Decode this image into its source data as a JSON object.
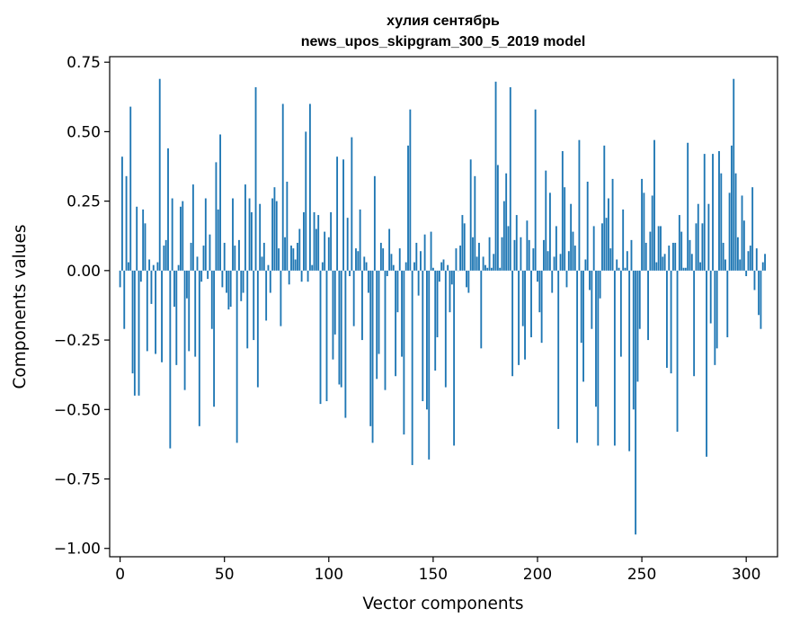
{
  "chart_data": {
    "type": "bar",
    "title": "хулия сентябрь",
    "subtitle": "news_upos_skipgram_300_5_2019 model",
    "xlabel": "Vector components",
    "ylabel": "Components values",
    "xlim": [
      -5,
      315
    ],
    "ylim": [
      -1.03,
      0.77
    ],
    "xticks": [
      0,
      50,
      100,
      150,
      200,
      250,
      300
    ],
    "xtick_labels": [
      "0",
      "50",
      "100",
      "150",
      "200",
      "250",
      "300"
    ],
    "yticks": [
      0.75,
      0.5,
      0.25,
      0.0,
      -0.25,
      -0.5,
      -0.75,
      -1.0
    ],
    "ytick_labels": [
      "0.75",
      "0.50",
      "0.25",
      "0.00",
      "−0.25",
      "−0.50",
      "−0.75",
      "−1.00"
    ],
    "grid": false,
    "color": "#1f77b4",
    "values": [
      -0.06,
      0.41,
      -0.21,
      0.34,
      0.03,
      0.59,
      -0.37,
      -0.45,
      0.23,
      -0.45,
      -0.04,
      0.22,
      0.17,
      -0.29,
      0.04,
      -0.12,
      0.02,
      -0.3,
      0.03,
      0.69,
      -0.33,
      0.09,
      0.11,
      0.44,
      -0.64,
      0.26,
      -0.13,
      -0.34,
      0.02,
      0.23,
      0.25,
      -0.43,
      -0.1,
      -0.29,
      0.1,
      0.31,
      -0.31,
      0.05,
      -0.56,
      -0.04,
      0.09,
      0.26,
      -0.03,
      0.13,
      -0.21,
      -0.49,
      0.39,
      0.22,
      0.49,
      -0.06,
      0.1,
      -0.08,
      -0.14,
      -0.13,
      0.26,
      0.09,
      -0.62,
      0.11,
      -0.11,
      -0.08,
      0.31,
      -0.28,
      0.26,
      0.21,
      -0.25,
      0.66,
      -0.42,
      0.24,
      0.05,
      0.1,
      -0.18,
      0.02,
      -0.08,
      0.26,
      0.3,
      0.25,
      0.08,
      -0.2,
      0.6,
      0.12,
      0.32,
      -0.05,
      0.09,
      0.08,
      0.04,
      0.1,
      0.15,
      -0.04,
      0.21,
      0.5,
      -0.04,
      0.6,
      0.02,
      0.21,
      0.15,
      0.2,
      -0.48,
      0.03,
      0.14,
      -0.47,
      0.12,
      0.21,
      -0.32,
      -0.23,
      0.41,
      -0.41,
      -0.42,
      0.4,
      -0.53,
      0.19,
      -0.02,
      0.48,
      -0.2,
      0.08,
      0.07,
      0.22,
      -0.25,
      0.05,
      0.03,
      -0.08,
      -0.56,
      -0.62,
      0.34,
      -0.39,
      -0.3,
      0.1,
      0.08,
      -0.43,
      -0.02,
      0.15,
      0.06,
      0.02,
      -0.38,
      -0.15,
      0.08,
      -0.31,
      -0.59,
      0.03,
      0.45,
      0.58,
      -0.7,
      0.03,
      0.1,
      -0.09,
      0.07,
      -0.47,
      0.13,
      -0.5,
      -0.68,
      0.14,
      0.01,
      -0.36,
      -0.24,
      -0.04,
      0.03,
      0.04,
      -0.42,
      0.02,
      -0.15,
      -0.05,
      -0.63,
      0.08,
      0.0,
      0.09,
      0.2,
      0.17,
      -0.06,
      -0.08,
      0.4,
      0.12,
      0.34,
      0.05,
      0.1,
      -0.28,
      0.05,
      0.02,
      0.01,
      0.12,
      0.01,
      0.06,
      0.68,
      0.38,
      0.01,
      0.12,
      0.25,
      0.35,
      0.16,
      0.66,
      -0.38,
      0.11,
      0.2,
      -0.34,
      0.12,
      -0.2,
      -0.32,
      0.18,
      0.11,
      -0.24,
      0.08,
      0.58,
      -0.04,
      -0.15,
      -0.26,
      0.11,
      0.36,
      0.07,
      0.28,
      -0.08,
      0.05,
      0.16,
      -0.57,
      0.06,
      0.43,
      0.3,
      -0.06,
      0.07,
      0.24,
      0.14,
      0.09,
      -0.62,
      0.47,
      -0.26,
      -0.4,
      0.04,
      0.32,
      -0.07,
      -0.21,
      0.16,
      -0.49,
      -0.63,
      -0.1,
      0.17,
      0.45,
      0.19,
      0.26,
      0.08,
      0.33,
      -0.63,
      0.04,
      0.01,
      -0.31,
      0.22,
      0.01,
      0.07,
      -0.65,
      0.11,
      -0.5,
      -0.95,
      -0.4,
      -0.21,
      0.33,
      0.28,
      0.1,
      -0.25,
      0.14,
      0.27,
      0.47,
      0.03,
      0.16,
      0.16,
      0.05,
      0.06,
      -0.35,
      0.09,
      -0.37,
      0.1,
      0.1,
      -0.58,
      0.2,
      0.14,
      0.01,
      0.01,
      0.46,
      0.11,
      0.06,
      -0.38,
      0.17,
      0.24,
      0.03,
      0.17,
      0.42,
      -0.67,
      0.24,
      -0.19,
      0.42,
      -0.34,
      -0.28,
      0.43,
      0.35,
      0.1,
      0.04,
      -0.24,
      0.28,
      0.45,
      0.69,
      0.35,
      0.12,
      0.04,
      0.27,
      0.18,
      -0.02,
      0.07,
      0.09,
      0.3,
      -0.07,
      0.08,
      -0.16,
      -0.21,
      0.03,
      0.06
    ]
  }
}
